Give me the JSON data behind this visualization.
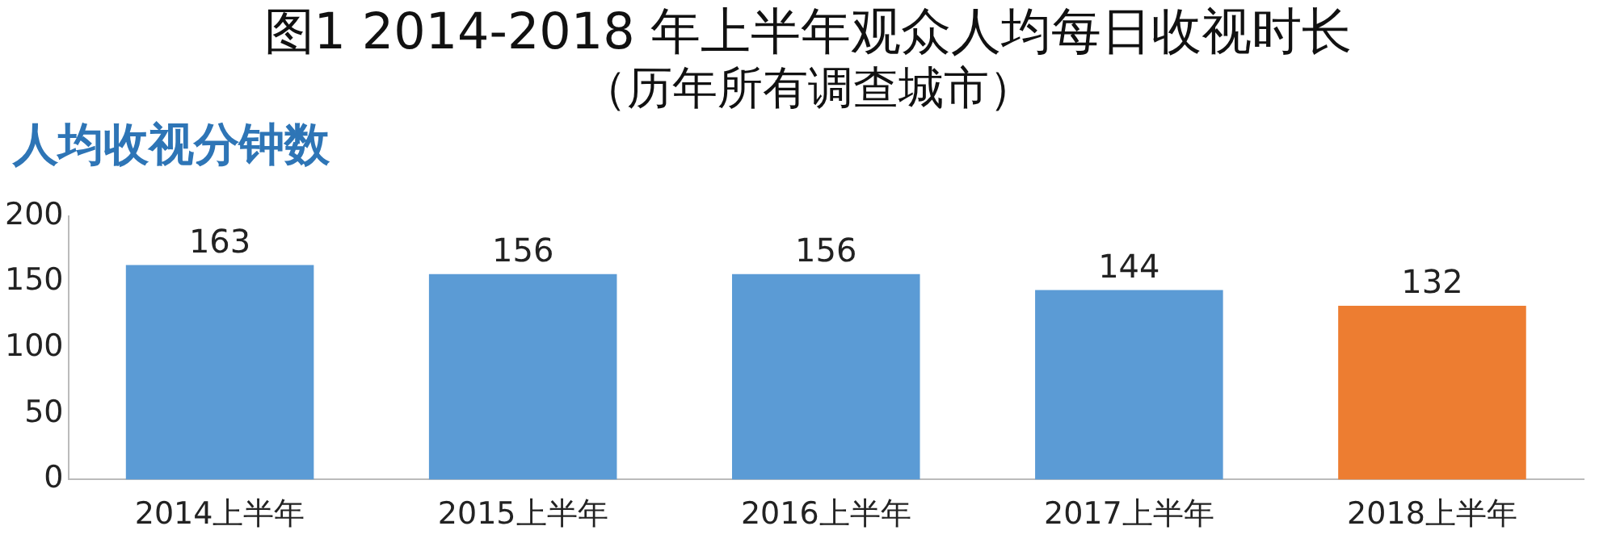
{
  "chart_data": {
    "type": "bar",
    "title": "图1 2014-2018 年上半年观众人均每日收视时长",
    "subtitle": "（历年所有调查城市）",
    "ylabel": "人均收视分钟数",
    "categories": [
      "2014上半年",
      "2015上半年",
      "2016上半年",
      "2017上半年",
      "2018上半年"
    ],
    "values": [
      163,
      156,
      156,
      144,
      132
    ],
    "colors": [
      "#5b9bd5",
      "#5b9bd5",
      "#5b9bd5",
      "#5b9bd5",
      "#ed7d31"
    ],
    "ylim": [
      0,
      200
    ],
    "yticks": [
      0,
      50,
      100,
      150,
      200
    ],
    "grid": false,
    "legend": false,
    "data_labels": true
  }
}
